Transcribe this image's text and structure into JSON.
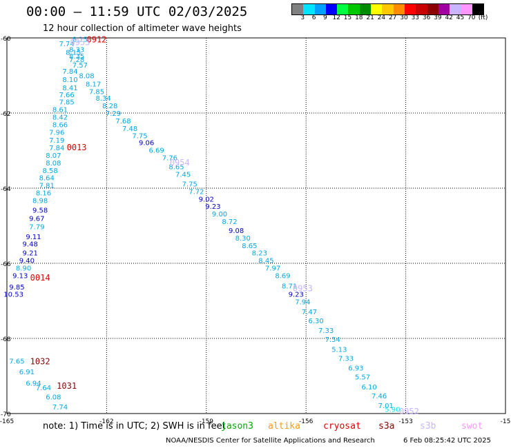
{
  "header": {
    "title": "00:00 – 11:59 UTC 02/03/2025",
    "subtitle": "12 hour collection of altimeter wave heights"
  },
  "colorbar": {
    "colors": [
      "#808080",
      "#00e5ff",
      "#00a0ff",
      "#0000ff",
      "#00ff40",
      "#00c800",
      "#008c00",
      "#ffff00",
      "#ffc800",
      "#ff8c00",
      "#ff0000",
      "#c80000",
      "#8c0000",
      "#a000a0",
      "#c8b4ff",
      "#ff96ff",
      "#000000"
    ],
    "ticks": [
      "3",
      "6",
      "9",
      "12",
      "15",
      "18",
      "21",
      "24",
      "27",
      "30",
      "33",
      "36",
      "39",
      "42",
      "45",
      "70"
    ],
    "unit": "(ft)"
  },
  "map": {
    "x_ticks": [
      "-165",
      "-162",
      "-159",
      "-156",
      "-153",
      "-15"
    ],
    "y_ticks": [
      "-60",
      "-62",
      "-64",
      "-66",
      "-68",
      "-70"
    ],
    "lon_range": [
      -165,
      -150
    ],
    "lat_range": [
      -60,
      -70
    ]
  },
  "chart_data": {
    "type": "scatter",
    "title": "00:00 – 11:59 UTC 02/03/2025",
    "subtitle": "12 hour collection of altimeter wave heights",
    "x_axis": "longitude",
    "y_axis": "latitude",
    "xlim": [
      -165,
      -150
    ],
    "ylim": [
      -70,
      -60
    ],
    "grid": true,
    "points": [
      {
        "lon": -162.8,
        "lat": -60.03,
        "v": "8.15",
        "color": "#00a8e0"
      },
      {
        "lon": -163.2,
        "lat": -60.15,
        "v": "7.74",
        "color": "#00a8e0"
      },
      {
        "lon": -162.9,
        "lat": -60.3,
        "v": "8.33",
        "color": "#00a8e0"
      },
      {
        "lon": -163.0,
        "lat": -60.38,
        "v": "8.15",
        "color": "#00a8e0"
      },
      {
        "lon": -162.9,
        "lat": -60.48,
        "v": "8.35",
        "color": "#00a8e0"
      },
      {
        "lon": -162.9,
        "lat": -60.57,
        "v": "7.28",
        "color": "#00a8e0"
      },
      {
        "lon": -162.8,
        "lat": -60.72,
        "v": "7.57",
        "color": "#00a8e0"
      },
      {
        "lon": -163.1,
        "lat": -60.88,
        "v": "7.84",
        "color": "#00a8e0"
      },
      {
        "lon": -162.6,
        "lat": -61.0,
        "v": "8.08",
        "color": "#00a8e0"
      },
      {
        "lon": -163.1,
        "lat": -61.1,
        "v": "8.10",
        "color": "#00a8e0"
      },
      {
        "lon": -162.4,
        "lat": -61.22,
        "v": "8.17",
        "color": "#00a8e0"
      },
      {
        "lon": -163.1,
        "lat": -61.32,
        "v": "8.41",
        "color": "#00a8e0"
      },
      {
        "lon": -162.3,
        "lat": -61.42,
        "v": "7.85",
        "color": "#00a8e0"
      },
      {
        "lon": -163.2,
        "lat": -61.5,
        "v": "7.66",
        "color": "#00a8e0"
      },
      {
        "lon": -162.1,
        "lat": -61.6,
        "v": "8.34",
        "color": "#00a8e0"
      },
      {
        "lon": -163.2,
        "lat": -61.7,
        "v": "7.85",
        "color": "#00a8e0"
      },
      {
        "lon": -161.9,
        "lat": -61.8,
        "v": "8.28",
        "color": "#00a8e0"
      },
      {
        "lon": -163.4,
        "lat": -61.9,
        "v": "8.61",
        "color": "#00a8e0"
      },
      {
        "lon": -161.8,
        "lat": -62.0,
        "v": "7.29",
        "color": "#00a8e0"
      },
      {
        "lon": -163.4,
        "lat": -62.1,
        "v": "8.42",
        "color": "#00a8e0"
      },
      {
        "lon": -161.5,
        "lat": -62.2,
        "v": "7.68",
        "color": "#00a8e0"
      },
      {
        "lon": -163.4,
        "lat": -62.3,
        "v": "8.66",
        "color": "#00a8e0"
      },
      {
        "lon": -161.3,
        "lat": -62.4,
        "v": "7.48",
        "color": "#00a8e0"
      },
      {
        "lon": -163.5,
        "lat": -62.5,
        "v": "7.96",
        "color": "#00a8e0"
      },
      {
        "lon": -161.0,
        "lat": -62.6,
        "v": "7.75",
        "color": "#00a8e0"
      },
      {
        "lon": -163.5,
        "lat": -62.72,
        "v": "7.19",
        "color": "#00a8e0"
      },
      {
        "lon": -160.8,
        "lat": -62.78,
        "v": "9.06",
        "color": "#0000c8"
      },
      {
        "lon": -163.5,
        "lat": -62.92,
        "v": "7.84",
        "color": "#00a8e0"
      },
      {
        "lon": -160.5,
        "lat": -62.98,
        "v": "6.69",
        "color": "#00a8e0"
      },
      {
        "lon": -163.6,
        "lat": -63.12,
        "v": "8.07",
        "color": "#00a8e0"
      },
      {
        "lon": -160.1,
        "lat": -63.18,
        "v": "7.76",
        "color": "#00a8e0"
      },
      {
        "lon": -163.6,
        "lat": -63.32,
        "v": "8.08",
        "color": "#00a8e0"
      },
      {
        "lon": -159.9,
        "lat": -63.42,
        "v": "8.65",
        "color": "#00a8e0"
      },
      {
        "lon": -163.7,
        "lat": -63.52,
        "v": "8.58",
        "color": "#00a8e0"
      },
      {
        "lon": -159.7,
        "lat": -63.62,
        "v": "7.45",
        "color": "#00a8e0"
      },
      {
        "lon": -163.8,
        "lat": -63.72,
        "v": "8.64",
        "color": "#00a8e0"
      },
      {
        "lon": -159.5,
        "lat": -63.88,
        "v": "7.75",
        "color": "#00a8e0"
      },
      {
        "lon": -163.8,
        "lat": -63.92,
        "v": "7.81",
        "color": "#00a8e0"
      },
      {
        "lon": -159.3,
        "lat": -64.08,
        "v": "7.72",
        "color": "#00a8e0"
      },
      {
        "lon": -163.9,
        "lat": -64.12,
        "v": "8.16",
        "color": "#00a8e0"
      },
      {
        "lon": -159.0,
        "lat": -64.28,
        "v": "9.02",
        "color": "#0000c8"
      },
      {
        "lon": -164.0,
        "lat": -64.32,
        "v": "8.98",
        "color": "#00a8e0"
      },
      {
        "lon": -158.8,
        "lat": -64.48,
        "v": "9.23",
        "color": "#0000c8"
      },
      {
        "lon": -164.0,
        "lat": -64.58,
        "v": "9.58",
        "color": "#0000c8"
      },
      {
        "lon": -158.6,
        "lat": -64.68,
        "v": "9.00",
        "color": "#00a8e0"
      },
      {
        "lon": -164.1,
        "lat": -64.8,
        "v": "9.67",
        "color": "#0000c8"
      },
      {
        "lon": -158.3,
        "lat": -64.88,
        "v": "8.72",
        "color": "#00a8e0"
      },
      {
        "lon": -164.1,
        "lat": -65.02,
        "v": "7.79",
        "color": "#00a8e0"
      },
      {
        "lon": -158.1,
        "lat": -65.12,
        "v": "9.08",
        "color": "#0000c8"
      },
      {
        "lon": -164.2,
        "lat": -65.28,
        "v": "9.11",
        "color": "#0000c8"
      },
      {
        "lon": -157.9,
        "lat": -65.32,
        "v": "8.30",
        "color": "#00a8e0"
      },
      {
        "lon": -164.3,
        "lat": -65.48,
        "v": "9.48",
        "color": "#0000c8"
      },
      {
        "lon": -157.7,
        "lat": -65.52,
        "v": "8.65",
        "color": "#00a8e0"
      },
      {
        "lon": -164.3,
        "lat": -65.72,
        "v": "9.21",
        "color": "#0000c8"
      },
      {
        "lon": -157.4,
        "lat": -65.72,
        "v": "8.23",
        "color": "#00a8e0"
      },
      {
        "lon": -164.4,
        "lat": -65.92,
        "v": "9.40",
        "color": "#0000c8"
      },
      {
        "lon": -157.2,
        "lat": -65.92,
        "v": "8.45",
        "color": "#00a8e0"
      },
      {
        "lon": -164.5,
        "lat": -66.12,
        "v": "8.90",
        "color": "#00a8e0"
      },
      {
        "lon": -157.0,
        "lat": -66.12,
        "v": "7.97",
        "color": "#00a8e0"
      },
      {
        "lon": -164.6,
        "lat": -66.32,
        "v": "9.13",
        "color": "#0000c8"
      },
      {
        "lon": -156.7,
        "lat": -66.32,
        "v": "8.69",
        "color": "#00a8e0"
      },
      {
        "lon": -164.7,
        "lat": -66.62,
        "v": "9.85",
        "color": "#0000c8"
      },
      {
        "lon": -156.5,
        "lat": -66.6,
        "v": "8.71",
        "color": "#00a8e0"
      },
      {
        "lon": -164.8,
        "lat": -66.82,
        "v": "10.53",
        "color": "#0000c8"
      },
      {
        "lon": -156.3,
        "lat": -66.82,
        "v": "9.23",
        "color": "#0000c8"
      },
      {
        "lon": -156.1,
        "lat": -67.02,
        "v": "7.94",
        "color": "#00a8e0"
      },
      {
        "lon": -155.9,
        "lat": -67.28,
        "v": "7.47",
        "color": "#00a8e0"
      },
      {
        "lon": -155.7,
        "lat": -67.52,
        "v": "6.30",
        "color": "#00a8e0"
      },
      {
        "lon": -155.4,
        "lat": -67.78,
        "v": "7.33",
        "color": "#00a8e0"
      },
      {
        "lon": -155.2,
        "lat": -68.02,
        "v": "7.54",
        "color": "#00a8e0"
      },
      {
        "lon": -155.0,
        "lat": -68.28,
        "v": "5.13",
        "color": "#00a8e0"
      },
      {
        "lon": -154.8,
        "lat": -68.52,
        "v": "7.33",
        "color": "#00a8e0"
      },
      {
        "lon": -154.5,
        "lat": -68.78,
        "v": "6.93",
        "color": "#00a8e0"
      },
      {
        "lon": -154.3,
        "lat": -69.02,
        "v": "5.57",
        "color": "#00a8e0"
      },
      {
        "lon": -154.1,
        "lat": -69.28,
        "v": "6.10",
        "color": "#00a8e0"
      },
      {
        "lon": -153.8,
        "lat": -69.52,
        "v": "7.46",
        "color": "#00a8e0"
      },
      {
        "lon": -153.6,
        "lat": -69.78,
        "v": "7.01",
        "color": "#00a8e0"
      },
      {
        "lon": -153.4,
        "lat": -69.88,
        "v": "5.90",
        "color": "#00e5ff"
      },
      {
        "lon": -164.7,
        "lat": -68.6,
        "v": "7.65",
        "color": "#00a8e0"
      },
      {
        "lon": -164.4,
        "lat": -68.88,
        "v": "6.91",
        "color": "#00a8e0"
      },
      {
        "lon": -164.2,
        "lat": -69.18,
        "v": "6.94",
        "color": "#00a8e0"
      },
      {
        "lon": -163.9,
        "lat": -69.3,
        "v": "7.64",
        "color": "#00a8e0"
      },
      {
        "lon": -163.6,
        "lat": -69.55,
        "v": "6.08",
        "color": "#00a8e0"
      },
      {
        "lon": -163.4,
        "lat": -69.82,
        "v": "7.74",
        "color": "#00a8e0"
      }
    ],
    "time_labels": [
      {
        "lon": -162.3,
        "lat": -60.03,
        "v": "0912",
        "color": "#e00000"
      },
      {
        "lon": -162.8,
        "lat": -60.1,
        "v": "0953",
        "color": "#c8b4ff"
      },
      {
        "lon": -162.9,
        "lat": -62.9,
        "v": "0013",
        "color": "#e00000"
      },
      {
        "lon": -159.8,
        "lat": -63.3,
        "v": "0954",
        "color": "#c8b4ff"
      },
      {
        "lon": -164.0,
        "lat": -66.37,
        "v": "0014",
        "color": "#e00000"
      },
      {
        "lon": -156.1,
        "lat": -66.65,
        "v": "0953",
        "color": "#c8b4ff"
      },
      {
        "lon": -164.0,
        "lat": -68.6,
        "v": "1032",
        "color": "#8c0000"
      },
      {
        "lon": -163.2,
        "lat": -69.25,
        "v": "1031",
        "color": "#8c0000"
      },
      {
        "lon": -152.9,
        "lat": -69.93,
        "v": "0952",
        "color": "#c8b4ff"
      }
    ]
  },
  "footer": {
    "note": "note: 1) Time is in UTC; 2) SWH is in feet",
    "legend": [
      {
        "label": "jason3",
        "color": "#00aa00"
      },
      {
        "label": "altika",
        "color": "#ff9900"
      },
      {
        "label": "cryosat",
        "color": "#e00000"
      },
      {
        "label": "s3a",
        "color": "#8c0000"
      },
      {
        "label": "s3b",
        "color": "#c8b4ff"
      },
      {
        "label": "swot",
        "color": "#ff96ff"
      }
    ],
    "credit": "NOAA/NESDIS Center for Satellite Applications and Research",
    "date": "6 Feb 08:25:42 UTC 2025"
  }
}
